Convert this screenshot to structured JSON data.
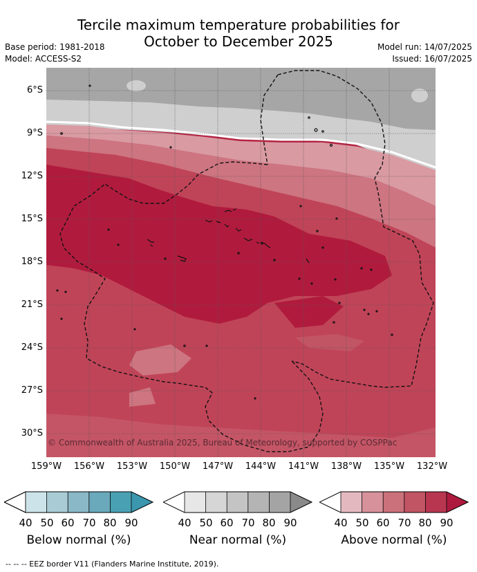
{
  "title_line1": "Tercile maximum temperature probabilities for",
  "title_line2": "October to December 2025",
  "base_period": "Base period: 1981-2018",
  "model": "Model: ACCESS-S2",
  "model_run": "Model run: 14/07/2025",
  "issued": "Issued: 16/07/2025",
  "lat_labels": [
    "6°S",
    "9°S",
    "12°S",
    "15°S",
    "18°S",
    "21°S",
    "24°S",
    "27°S",
    "30°S"
  ],
  "lon_labels": [
    "159°W",
    "156°W",
    "153°W",
    "150°W",
    "147°W",
    "144°W",
    "141°W",
    "138°W",
    "135°W",
    "132°W"
  ],
  "copyright": "© Commonwealth of Australia 2025, Bureau of Meteorology, supported by COSPPac",
  "legends": [
    {
      "title": "Below normal (%)",
      "ticks": [
        "40",
        "50",
        "60",
        "70",
        "80",
        "90"
      ],
      "colors": [
        "#ffffff",
        "#cde3ea",
        "#a9cbd5",
        "#8ab8c6",
        "#6aa9bb",
        "#4aa0b3",
        "#3b97ad"
      ]
    },
    {
      "title": "Near normal (%)",
      "ticks": [
        "40",
        "50",
        "60",
        "70",
        "80",
        "90"
      ],
      "colors": [
        "#ffffff",
        "#e7e7e7",
        "#d6d6d6",
        "#c4c4c4",
        "#b4b4b4",
        "#a4a4a4",
        "#8a8a8a"
      ]
    },
    {
      "title": "Above normal (%)",
      "ticks": [
        "40",
        "50",
        "60",
        "70",
        "80",
        "90"
      ],
      "colors": [
        "#ffffff",
        "#e3b9bf",
        "#d6919a",
        "#cb717c",
        "#c15564",
        "#b83650",
        "#ad1a3e"
      ]
    }
  ],
  "footnote": "--  --  -- EEZ border V11 (Flanders Marine Institute, 2019)."
}
